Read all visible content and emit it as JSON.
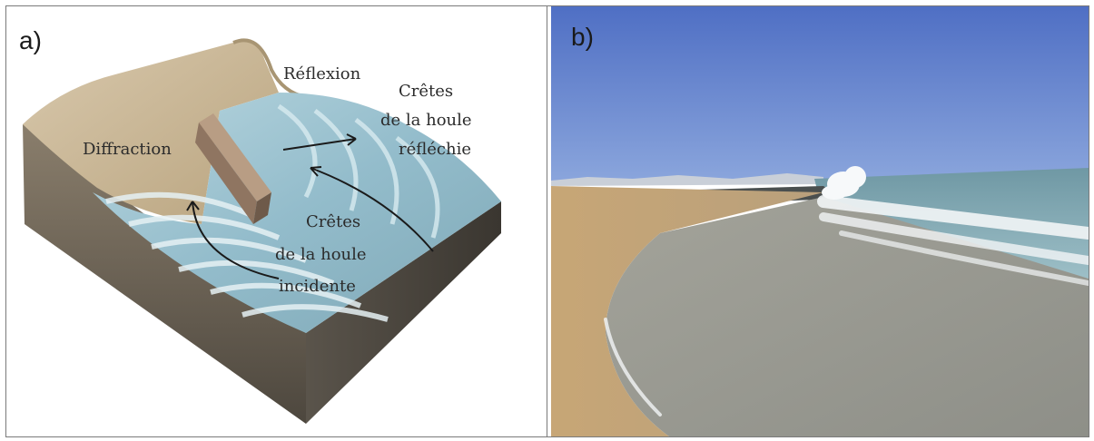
{
  "panel_a": {
    "label": "a)",
    "annotations": {
      "reflexion": "Réflexion",
      "diffraction": "Diffraction",
      "cretes_reflechie": [
        "Crêtes",
        "de la houle",
        "réfléchie"
      ],
      "cretes_incidente": [
        "Crêtes",
        "de la houle",
        "incidente"
      ]
    }
  },
  "panel_b": {
    "label": "b)"
  },
  "colors": {
    "frame": "#7a7a7a",
    "sky": "#5a78c8",
    "sea": "#8fb3c4",
    "sand": "#c9a878",
    "foam": "#eef3f6",
    "water_diagram": "#9fc6d2",
    "cliff": "#cbb89a"
  }
}
